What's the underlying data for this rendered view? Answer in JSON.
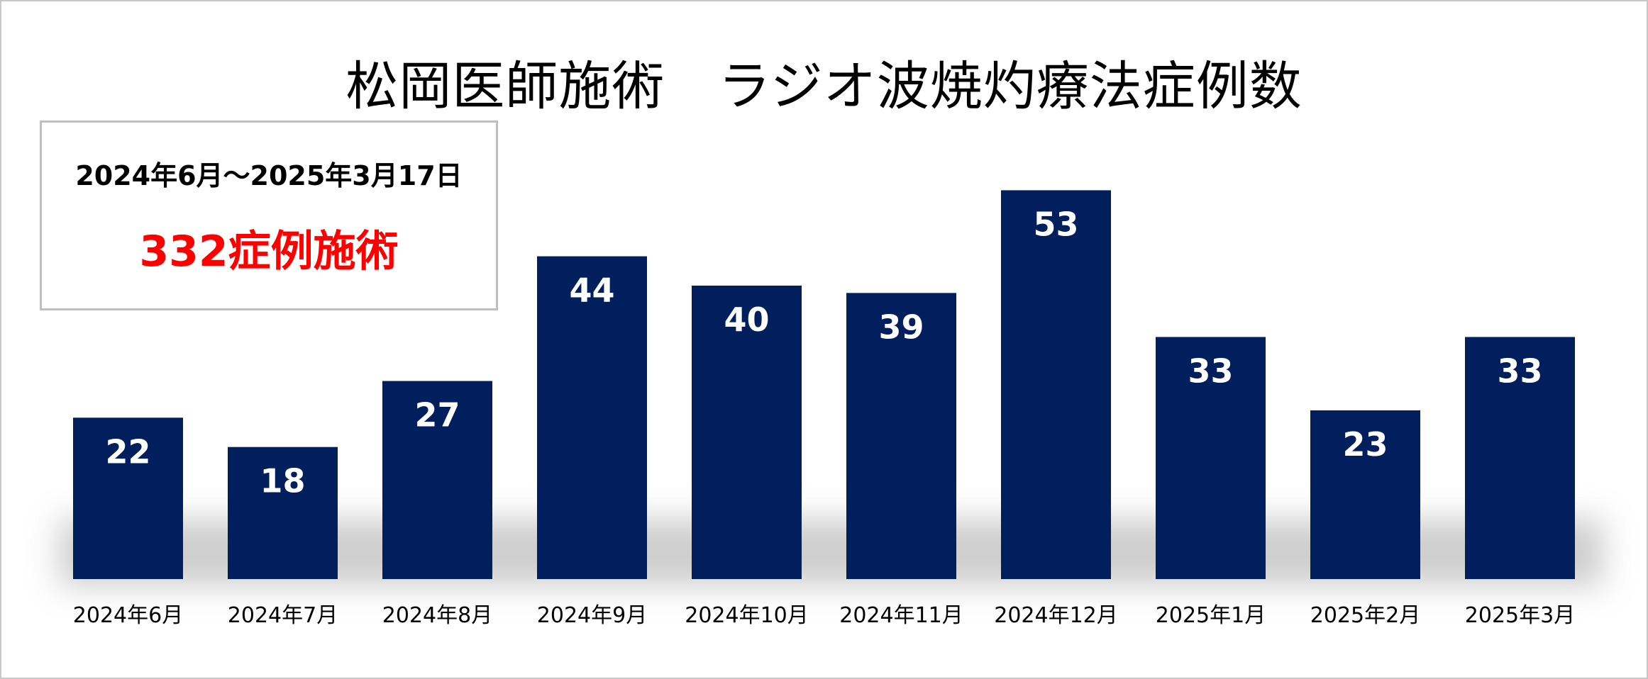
{
  "chart_data": {
    "type": "bar",
    "title": "松岡医師施術　ラジオ波焼灼療法症例数",
    "categories": [
      "2024年6月",
      "2024年7月",
      "2024年8月",
      "2024年9月",
      "2024年10月",
      "2024年11月",
      "2024年12月",
      "2025年1月",
      "2025年2月",
      "2025年3月"
    ],
    "values": [
      22,
      18,
      27,
      44,
      40,
      39,
      53,
      33,
      23,
      33
    ],
    "data_labels": [
      "22",
      "18",
      "27",
      "44",
      "40",
      "39",
      "53",
      "33",
      "23",
      "33"
    ],
    "xlabel": "",
    "ylabel": "",
    "ylim": [
      0,
      55
    ],
    "grid": false,
    "bar_color": "#001f5c",
    "label_color": "#ffffff"
  },
  "summary_box": {
    "period": "2024年6月～2025年3月17日",
    "total": "332症例施術",
    "total_color": "#ff0000"
  }
}
